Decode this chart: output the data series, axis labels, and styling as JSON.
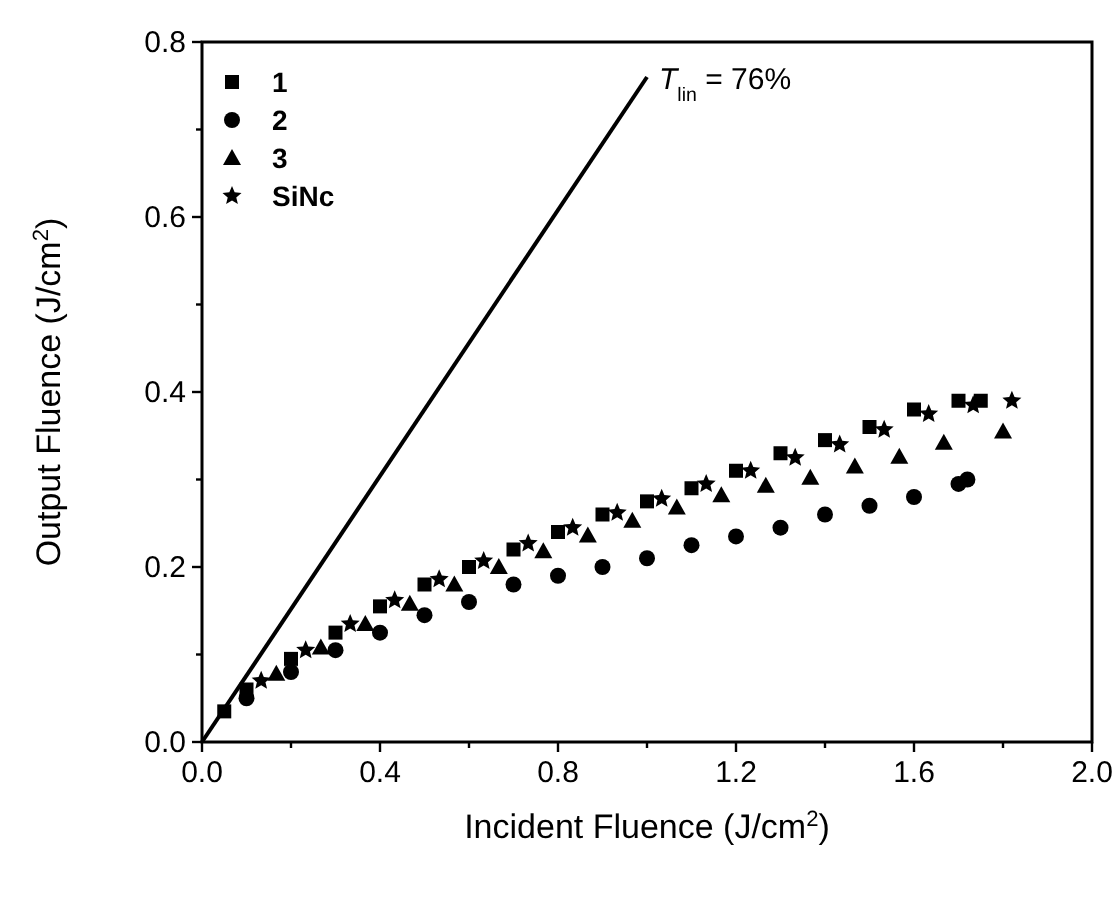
{
  "chart_data": {
    "type": "scatter",
    "xlabel": "Incident Fluence (J/cm$^{2}$)",
    "ylabel": "Output Fluence (J/cm$^{2}$)",
    "xlim": [
      0,
      2.0
    ],
    "ylim": [
      0,
      0.8
    ],
    "xticks": [
      {
        "value": 0,
        "label": "0.0"
      },
      {
        "value": 0.2,
        "label": null
      },
      0.4,
      {
        "value": 0.6,
        "label": null
      },
      0.8,
      {
        "value": 1.0,
        "label": null
      },
      1.2,
      {
        "value": 1.4,
        "label": null
      },
      1.6,
      {
        "value": 1.8,
        "label": null
      },
      {
        "value": 2,
        "label": "2.0"
      }
    ],
    "yticks": [
      {
        "value": 0,
        "label": "0.0"
      },
      {
        "value": 0.1,
        "label": null
      },
      0.2,
      {
        "value": 0.3,
        "label": null
      },
      0.4,
      {
        "value": 0.5,
        "label": null
      },
      0.6,
      {
        "value": 0.7,
        "label": null
      },
      0.8
    ],
    "grid": false,
    "legend": "top left",
    "series": [
      {
        "name": "1",
        "color": "#000000",
        "marker": "square",
        "x": [
          0.05,
          0.1,
          0.2,
          0.3,
          0.4,
          0.5,
          0.6,
          0.7,
          0.8,
          0.9,
          1.0,
          1.1,
          1.2,
          1.3,
          1.4,
          1.5,
          1.6,
          1.7,
          1.75
        ],
        "values": [
          0.035,
          0.06,
          0.095,
          0.125,
          0.155,
          0.18,
          0.2,
          0.22,
          0.24,
          0.26,
          0.275,
          0.29,
          0.31,
          0.33,
          0.345,
          0.36,
          0.38,
          0.39,
          0.39
        ]
      },
      {
        "name": "2",
        "color": "#000000",
        "marker": "circle",
        "x": [
          0.1,
          0.2,
          0.3,
          0.4,
          0.5,
          0.6,
          0.7,
          0.8,
          0.9,
          1.0,
          1.1,
          1.2,
          1.3,
          1.4,
          1.5,
          1.6,
          1.7,
          1.72
        ],
        "values": [
          0.05,
          0.08,
          0.105,
          0.125,
          0.145,
          0.16,
          0.18,
          0.19,
          0.2,
          0.21,
          0.225,
          0.235,
          0.245,
          0.26,
          0.27,
          0.28,
          0.295,
          0.3
        ]
      },
      {
        "name": "3",
        "color": "#000000",
        "marker": "triangle",
        "x": [
          0.167,
          0.267,
          0.367,
          0.467,
          0.567,
          0.667,
          0.767,
          0.867,
          0.967,
          1.067,
          1.167,
          1.267,
          1.367,
          1.467,
          1.567,
          1.667,
          1.8
        ],
        "values": [
          0.078,
          0.108,
          0.135,
          0.158,
          0.18,
          0.2,
          0.218,
          0.236,
          0.253,
          0.268,
          0.282,
          0.293,
          0.302,
          0.315,
          0.326,
          0.342,
          0.355
        ]
      },
      {
        "name": "SiNc",
        "color": "#000000",
        "marker": "star",
        "x": [
          0.133,
          0.233,
          0.333,
          0.433,
          0.533,
          0.633,
          0.733,
          0.833,
          0.933,
          1.033,
          1.133,
          1.233,
          1.333,
          1.433,
          1.533,
          1.633,
          1.733,
          1.82
        ],
        "values": [
          0.07,
          0.105,
          0.135,
          0.162,
          0.186,
          0.207,
          0.227,
          0.245,
          0.262,
          0.278,
          0.295,
          0.31,
          0.325,
          0.34,
          0.357,
          0.375,
          0.385,
          0.39
        ]
      },
      {
        "type": "line",
        "color": "#000000",
        "marker": "none",
        "line_style": "solid",
        "x": [
          0,
          1.0
        ],
        "values": [
          0,
          0.76
        ]
      }
    ],
    "annotations": [
      {
        "text": "T$_{lin}$ = 76%",
        "x": 1.0,
        "y": 0.76
      }
    ]
  }
}
